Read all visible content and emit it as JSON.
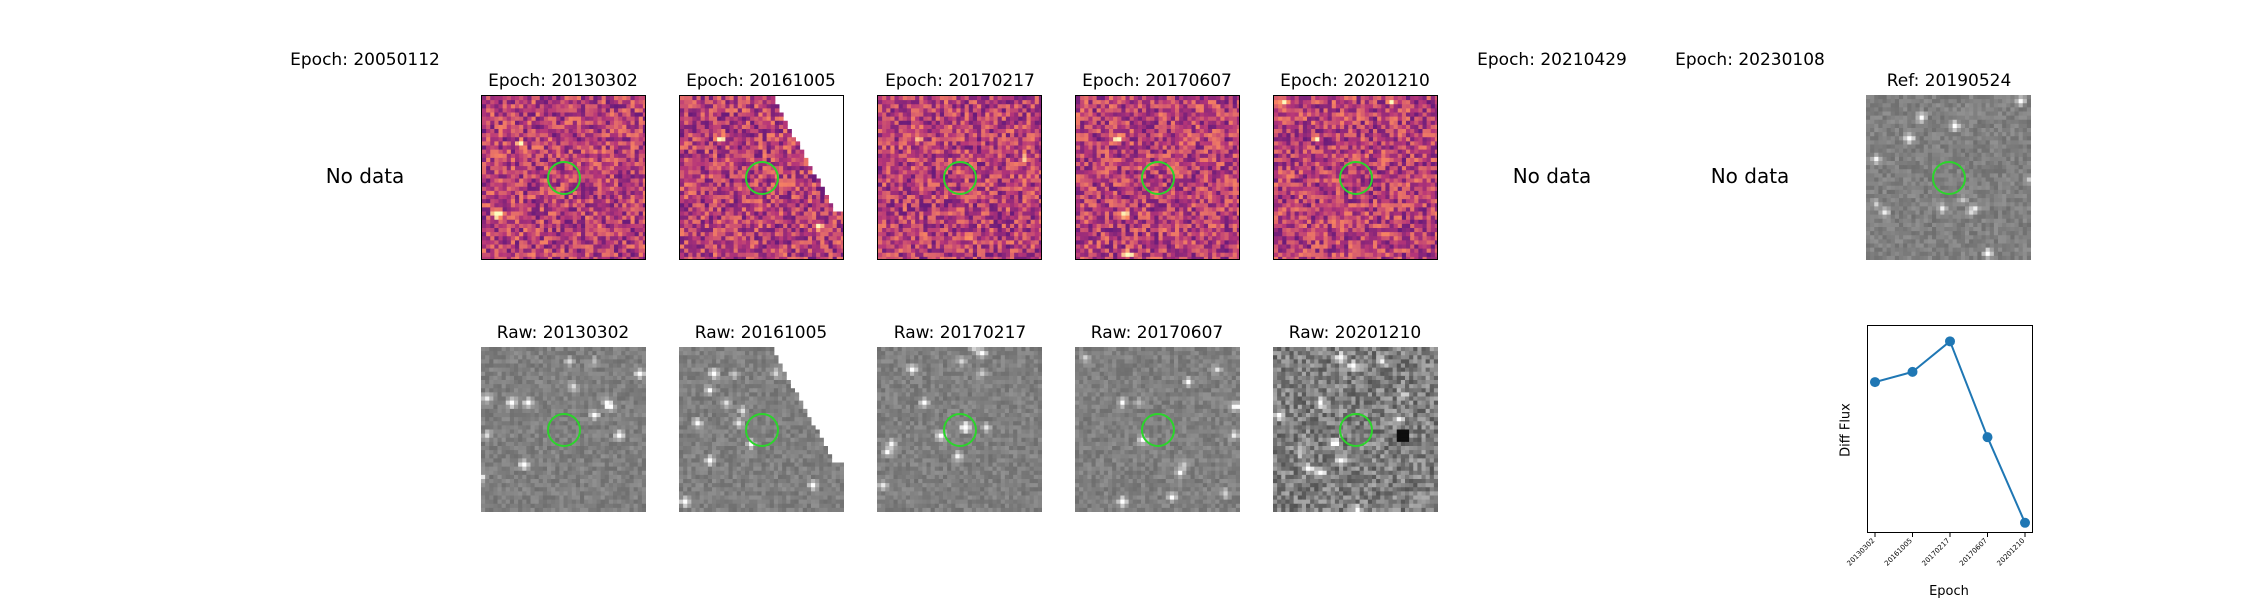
{
  "top_row": [
    {
      "title": "Epoch: 20050112",
      "has_data": false,
      "no_data_text": "No data"
    },
    {
      "title": "Epoch: 20130302",
      "has_data": true,
      "colormap": "magma"
    },
    {
      "title": "Epoch: 20161005",
      "has_data": true,
      "colormap": "magma"
    },
    {
      "title": "Epoch: 20170217",
      "has_data": true,
      "colormap": "magma"
    },
    {
      "title": "Epoch: 20170607",
      "has_data": true,
      "colormap": "magma"
    },
    {
      "title": "Epoch: 20201210",
      "has_data": true,
      "colormap": "magma"
    },
    {
      "title": "Epoch: 20210429",
      "has_data": false,
      "no_data_text": "No data"
    },
    {
      "title": "Epoch: 20230108",
      "has_data": false,
      "no_data_text": "No data"
    },
    {
      "title": "Ref: 20190524",
      "has_data": true,
      "colormap": "gray"
    }
  ],
  "raw_row": [
    {
      "title": "Raw: 20130302"
    },
    {
      "title": "Raw: 20161005"
    },
    {
      "title": "Raw: 20170217"
    },
    {
      "title": "Raw: 20170607"
    },
    {
      "title": "Raw: 20201210"
    }
  ],
  "aperture_color": "#2bd52b",
  "chart_data": {
    "type": "line",
    "categories": [
      "20130302",
      "20161005",
      "20170217",
      "20170607",
      "20201210"
    ],
    "values": [
      0.62,
      0.67,
      0.82,
      0.35,
      -0.07
    ],
    "ylim": [
      -0.12,
      0.9
    ],
    "xlabel": "Epoch",
    "ylabel": "Diff Flux",
    "line_color": "#1f77b4",
    "y_ticks_shown": false
  }
}
